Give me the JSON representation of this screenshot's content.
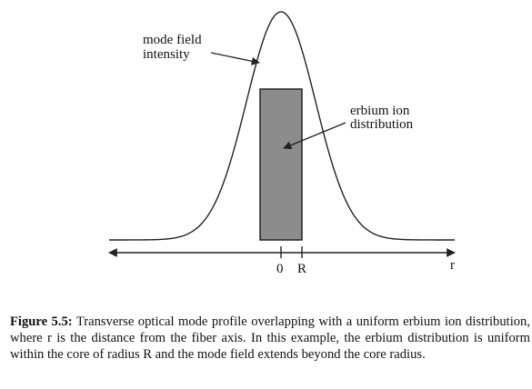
{
  "figure": {
    "labels": {
      "mode_field_line1": "mode field",
      "mode_field_line2": "intensity",
      "erbium_line1": "erbium ion",
      "erbium_line2": "distribution"
    },
    "axis": {
      "tick_zero": "0",
      "tick_r": "R",
      "axis_label": "r"
    },
    "colors": {
      "erbium_fill": "#8c8c8c",
      "line": "#222222"
    }
  },
  "caption": {
    "label": "Figure 5.5:",
    "text": " Transverse optical mode profile overlapping with a uniform erbium ion distribution, where r is the distance from the fiber axis. In this example, the erbium distribution is uniform within the core of radius R and the mode field extends beyond the core radius."
  }
}
